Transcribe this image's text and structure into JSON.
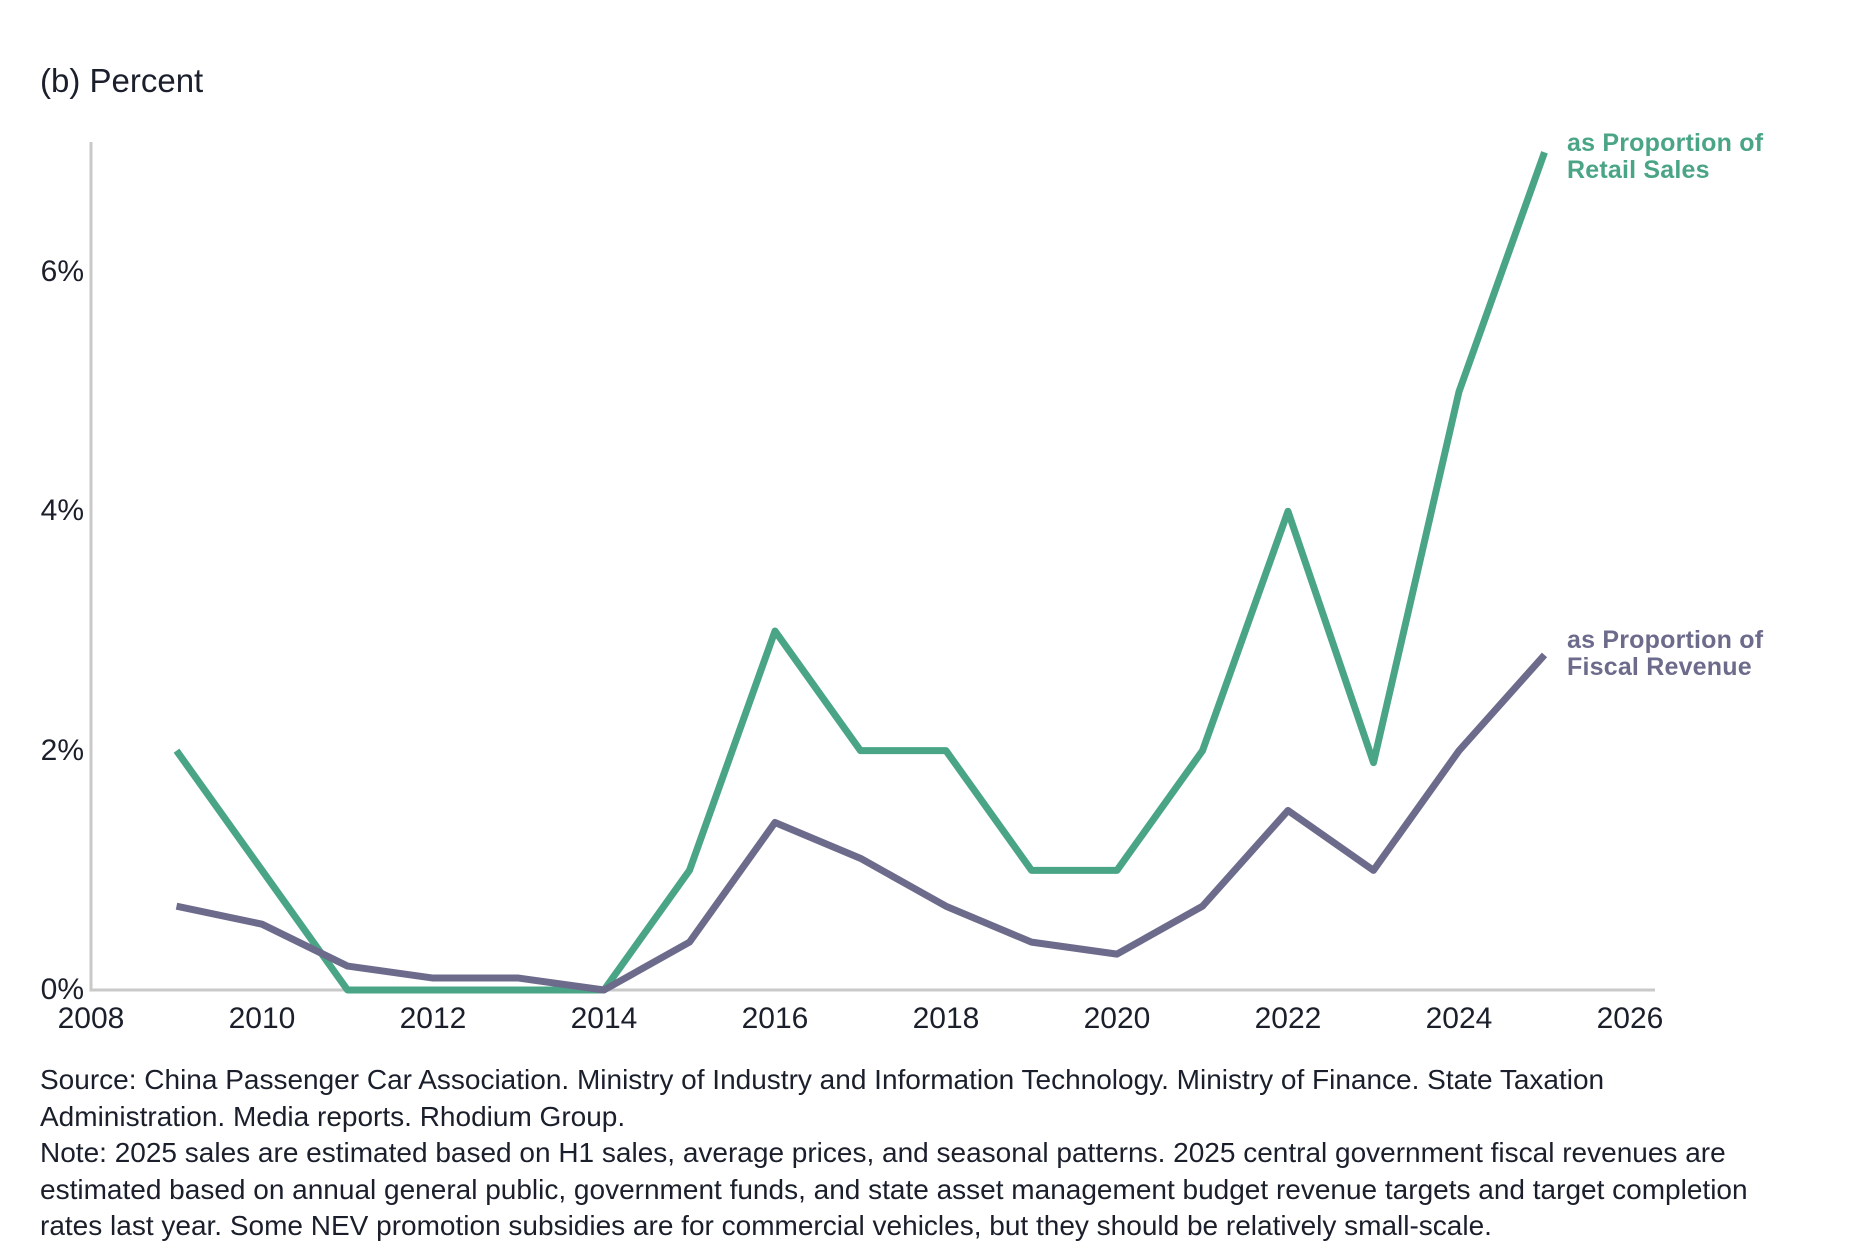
{
  "chart_data": {
    "type": "line",
    "title": "(b) Percent",
    "xlabel": "",
    "ylabel": "Percent",
    "xlim": [
      2008,
      2026.3
    ],
    "ylim": [
      0,
      7.1
    ],
    "grid": false,
    "legend_position": "end-of-line-labels",
    "x": [
      2009,
      2010,
      2011,
      2012,
      2013,
      2014,
      2015,
      2016,
      2017,
      2018,
      2019,
      2020,
      2021,
      2022,
      2023,
      2024,
      2025
    ],
    "series": [
      {
        "name": "as Proportion of Retail Sales",
        "label_line1": "as Proportion of",
        "label_line2": "Retail Sales",
        "color": "#4aa586",
        "values": [
          2.0,
          1.0,
          0.0,
          0.0,
          0.0,
          0.0,
          1.0,
          3.0,
          2.0,
          2.0,
          1.0,
          1.0,
          2.0,
          4.0,
          1.9,
          5.0,
          7.0
        ]
      },
      {
        "name": "as Proportion of Fiscal Revenue",
        "label_line1": "as Proportion of",
        "label_line2": "Fiscal Revenue",
        "color": "#6d6b8c",
        "values": [
          0.7,
          0.55,
          0.2,
          0.1,
          0.1,
          0.0,
          0.4,
          1.4,
          1.1,
          0.7,
          0.4,
          0.3,
          0.7,
          1.5,
          1.0,
          2.0,
          2.8
        ]
      }
    ],
    "xticks": [
      2008,
      2010,
      2012,
      2014,
      2016,
      2018,
      2020,
      2022,
      2024,
      2026
    ],
    "yticks": [
      {
        "label": "0%",
        "value": 0
      },
      {
        "label": "2%",
        "value": 2
      },
      {
        "label": "4%",
        "value": 4
      },
      {
        "label": "6%",
        "value": 6
      }
    ],
    "axis_color": "#c9c9c9",
    "text_color": "#1b1f2b"
  },
  "footer": {
    "lines": [
      "Source: China Passenger Car Association. Ministry of Industry and Information Technology. Ministry of Finance. State Taxation",
      "Administration. Media reports. Rhodium Group.",
      "Note: 2025 sales are estimated based on H1 sales, average prices, and seasonal patterns. 2025 central government fiscal revenues are",
      "estimated based on annual general public, government funds, and state asset management budget revenue targets and target completion",
      "rates last year. Some NEV promotion subsidies are for commercial vehicles, but they should be relatively small-scale."
    ]
  }
}
